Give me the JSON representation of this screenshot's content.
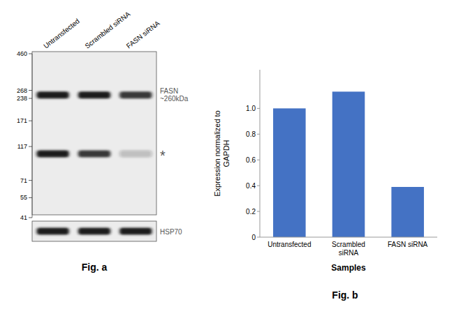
{
  "chart_data": [
    {
      "type": "western_blot",
      "title": "Fig. a",
      "categories": [
        "Untransfected",
        "Scrambled siRNA",
        "FASN siRNA"
      ],
      "log": "y",
      "ylim": [
        41,
        460
      ],
      "yticks": [
        460,
        268,
        238,
        171,
        117,
        71,
        55,
        41
      ],
      "series": [
        {
          "name": "FASN\n~260kDa",
          "values": [
            250,
            250,
            250
          ]
        },
        {
          "name": "*",
          "values": [
            105,
            105,
            105
          ]
        }
      ],
      "annotations": [
        "HSP70"
      ]
    },
    {
      "type": "bar",
      "title": "Fig. b",
      "categories": [
        "Untransfected",
        "Scrambled\nsiRNA",
        "FASN siRNA"
      ],
      "values": [
        1.0,
        1.13,
        0.39
      ],
      "color": "#4472C4",
      "xlabel": "Samples",
      "ylabel": "Expression normalized to\nGAPDH",
      "ylim": [
        0,
        1.3
      ],
      "yticks": [
        0,
        0.2,
        0.4,
        0.6,
        0.8,
        {
          "value": 1.0,
          "label": "1.0"
        }
      ]
    }
  ]
}
